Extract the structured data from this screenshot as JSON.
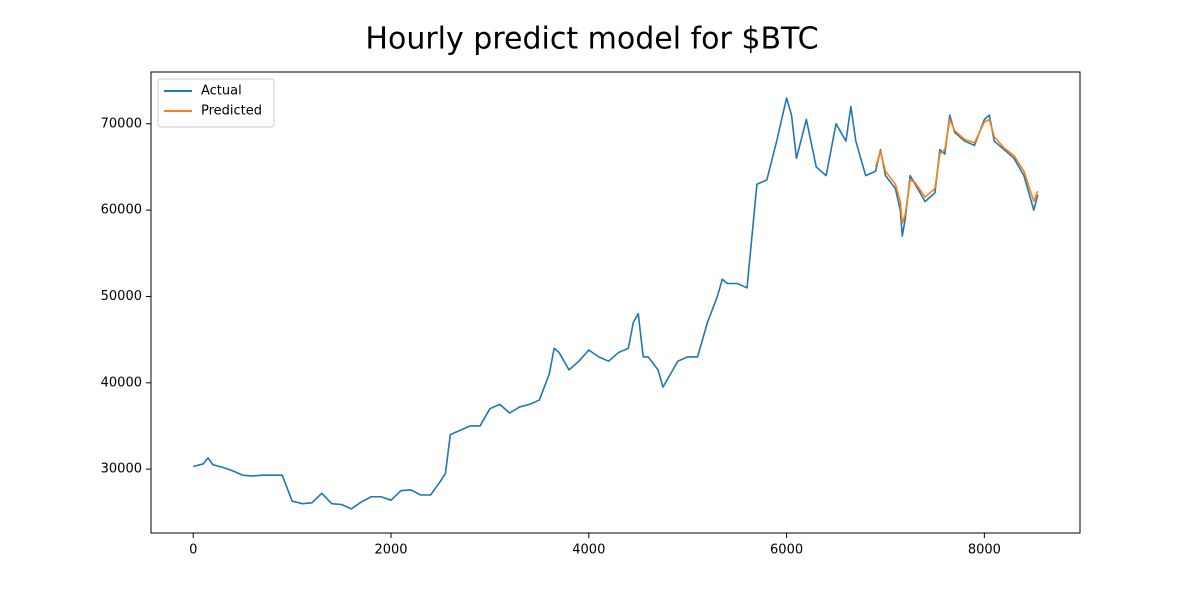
{
  "chart_data": {
    "type": "line",
    "title": "Hourly predict model for $BTC",
    "x": [
      0,
      100,
      150,
      200,
      300,
      400,
      500,
      600,
      700,
      800,
      900,
      1000,
      1100,
      1200,
      1300,
      1400,
      1500,
      1600,
      1700,
      1800,
      1900,
      2000,
      2100,
      2200,
      2300,
      2400,
      2500,
      2550,
      2600,
      2700,
      2800,
      2900,
      3000,
      3100,
      3200,
      3300,
      3400,
      3500,
      3600,
      3650,
      3700,
      3800,
      3900,
      4000,
      4100,
      4200,
      4300,
      4400,
      4450,
      4500,
      4550,
      4600,
      4700,
      4750,
      4800,
      4900,
      5000,
      5100,
      5200,
      5300,
      5350,
      5400,
      5500,
      5600,
      5650,
      5700,
      5800,
      5900,
      6000,
      6050,
      6100,
      6200,
      6300,
      6400,
      6500,
      6600,
      6650,
      6700,
      6800,
      6900,
      6950,
      7000,
      7100,
      7150,
      7170,
      7200,
      7250,
      7300,
      7400,
      7500,
      7550,
      7600,
      7650,
      7700,
      7800,
      7900,
      8000,
      8050,
      8100,
      8200,
      8300,
      8400,
      8500,
      8540
    ],
    "series": [
      {
        "name": "Actual",
        "color": "#1f77b4",
        "values": [
          30300,
          30600,
          31300,
          30500,
          30200,
          29800,
          29300,
          29200,
          29300,
          29300,
          29300,
          26300,
          26000,
          26100,
          27200,
          26000,
          25900,
          25400,
          26200,
          26800,
          26800,
          26400,
          27500,
          27600,
          27000,
          27000,
          28600,
          29500,
          34000,
          34500,
          35000,
          35000,
          37000,
          37500,
          36500,
          37200,
          37500,
          38000,
          41000,
          44000,
          43500,
          41500,
          42500,
          43800,
          43000,
          42500,
          43500,
          44000,
          47000,
          48000,
          43000,
          43000,
          41500,
          39500,
          40500,
          42500,
          43000,
          43000,
          47000,
          50000,
          52000,
          51500,
          51500,
          51000,
          57000,
          63000,
          63500,
          68000,
          73000,
          71000,
          66000,
          70500,
          65000,
          64000,
          70000,
          68000,
          72000,
          68000,
          64000,
          64500,
          67000,
          64000,
          62500,
          60000,
          57000,
          59000,
          64000,
          63000,
          61000,
          62000,
          67000,
          66500,
          71000,
          69000,
          68000,
          67500,
          70500,
          71000,
          68000,
          67000,
          66000,
          64000,
          60000,
          61800
        ]
      },
      {
        "name": "Predicted",
        "color": "#ff7f0e",
        "values": [
          null,
          null,
          null,
          null,
          null,
          null,
          null,
          null,
          null,
          null,
          null,
          null,
          null,
          null,
          null,
          null,
          null,
          null,
          null,
          null,
          null,
          null,
          null,
          null,
          null,
          null,
          null,
          null,
          null,
          null,
          null,
          null,
          null,
          null,
          null,
          null,
          null,
          null,
          null,
          null,
          null,
          null,
          null,
          null,
          null,
          null,
          null,
          null,
          null,
          null,
          null,
          null,
          null,
          null,
          null,
          null,
          null,
          null,
          null,
          null,
          null,
          null,
          null,
          null,
          null,
          null,
          null,
          null,
          null,
          null,
          null,
          null,
          null,
          null,
          null,
          null,
          null,
          null,
          null,
          65000,
          66800,
          64500,
          63000,
          61000,
          58500,
          59500,
          63500,
          63200,
          61500,
          62500,
          66500,
          67000,
          70500,
          69200,
          68200,
          67800,
          70200,
          70500,
          68500,
          67200,
          66300,
          64500,
          61000,
          62200
        ]
      }
    ],
    "xlim": [
      -427,
      8967
    ],
    "ylim": [
      22600,
      76000
    ],
    "xticks": [
      0,
      2000,
      4000,
      6000,
      8000
    ],
    "yticks": [
      30000,
      40000,
      50000,
      60000,
      70000
    ],
    "legend": "upper left",
    "grid": false
  }
}
